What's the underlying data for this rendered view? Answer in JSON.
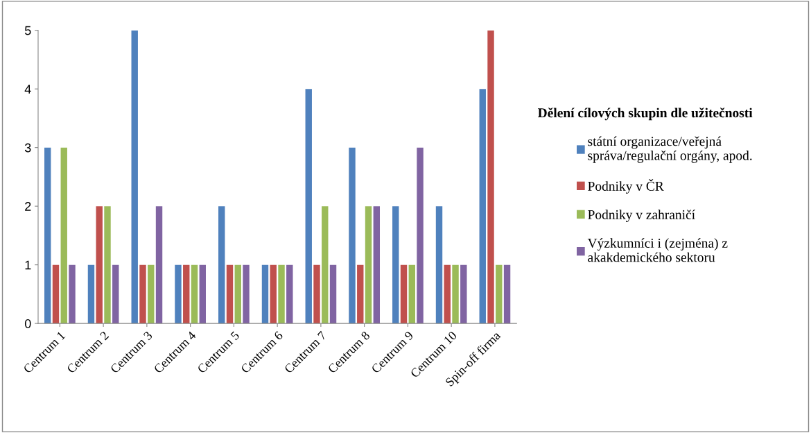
{
  "chart_data": {
    "type": "bar",
    "legend_title": "Dělení cílových skupin dle užitečnosti",
    "categories": [
      "Centrum 1",
      "Centrum 2",
      "Centrum 3",
      "Centrum 4",
      "Centrum 5",
      "Centrum 6",
      "Centrum 7",
      "Centrum 8",
      "Centrum 9",
      "Centrum 10",
      "Spin-off firma"
    ],
    "series": [
      {
        "name": "státní organizace/veřejná\nspráva/regulační orgány, apod.",
        "color": "#4f81bd",
        "values": [
          3,
          1,
          5,
          1,
          2,
          1,
          4,
          3,
          2,
          2,
          4
        ]
      },
      {
        "name": "Podniky v ČR",
        "color": "#c0504d",
        "values": [
          1,
          2,
          1,
          1,
          1,
          1,
          1,
          1,
          1,
          1,
          5
        ]
      },
      {
        "name": "Podniky v zahraničí",
        "color": "#9bbb59",
        "values": [
          3,
          2,
          1,
          1,
          1,
          1,
          2,
          2,
          1,
          1,
          1
        ]
      },
      {
        "name": "Výzkumníci i (zejména) z\nakakdemického sektoru",
        "color": "#8064a2",
        "values": [
          1,
          1,
          2,
          1,
          1,
          1,
          1,
          2,
          3,
          1,
          1
        ]
      }
    ],
    "ylim": [
      0,
      5
    ],
    "yticks": [
      0,
      1,
      2,
      3,
      4,
      5
    ],
    "grid": false,
    "legend": "right"
  }
}
